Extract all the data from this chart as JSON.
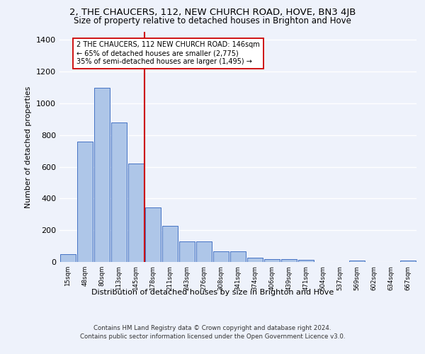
{
  "title1": "2, THE CHAUCERS, 112, NEW CHURCH ROAD, HOVE, BN3 4JB",
  "title2": "Size of property relative to detached houses in Brighton and Hove",
  "xlabel": "Distribution of detached houses by size in Brighton and Hove",
  "ylabel": "Number of detached properties",
  "categories": [
    "15sqm",
    "48sqm",
    "80sqm",
    "113sqm",
    "145sqm",
    "178sqm",
    "211sqm",
    "243sqm",
    "276sqm",
    "308sqm",
    "341sqm",
    "374sqm",
    "406sqm",
    "439sqm",
    "471sqm",
    "504sqm",
    "537sqm",
    "569sqm",
    "602sqm",
    "634sqm",
    "667sqm"
  ],
  "values": [
    48,
    757,
    1098,
    878,
    620,
    345,
    228,
    130,
    130,
    65,
    65,
    25,
    18,
    18,
    14,
    0,
    0,
    10,
    0,
    0,
    10
  ],
  "bar_color": "#aec6e8",
  "bar_edge_color": "#4472c4",
  "vline_index": 4,
  "annotation_text": "2 THE CHAUCERS, 112 NEW CHURCH ROAD: 146sqm\n← 65% of detached houses are smaller (2,775)\n35% of semi-detached houses are larger (1,495) →",
  "annotation_box_color": "#ffffff",
  "annotation_box_edge": "#cc0000",
  "vline_color": "#cc0000",
  "footer": "Contains HM Land Registry data © Crown copyright and database right 2024.\nContains public sector information licensed under the Open Government Licence v3.0.",
  "bg_color": "#eef2fb",
  "ylim": [
    0,
    1450
  ],
  "grid_color": "#ffffff"
}
